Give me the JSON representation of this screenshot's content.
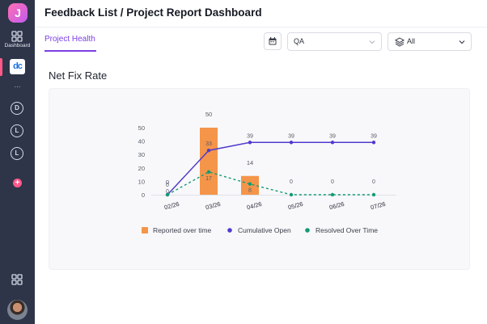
{
  "sidebar": {
    "logo_letter": "J",
    "dashboard_label": "Dashboard",
    "workspace_logo": "dc",
    "more": "...",
    "items": [
      {
        "icon": "d-circle-icon",
        "letter": "D"
      },
      {
        "icon": "clock-icon",
        "letter": "L"
      },
      {
        "icon": "clock-icon",
        "letter": "L"
      }
    ],
    "add": "+"
  },
  "header": {
    "title": "Feedback List / Project Report Dashboard"
  },
  "tabs": [
    {
      "label": "Project Health",
      "active": true
    }
  ],
  "filters": {
    "environment": "QA",
    "layers": "All"
  },
  "section": {
    "title": "Net Fix Rate"
  },
  "chart_data": {
    "type": "bar",
    "categories": [
      "02/26",
      "03/26",
      "04/26",
      "05/26",
      "06/26",
      "07/26"
    ],
    "ylim": [
      0,
      50
    ],
    "y_ticks": [
      0,
      10,
      20,
      30,
      40,
      50
    ],
    "grid": false,
    "legend_position": "bottom",
    "series": [
      {
        "name": "Reported over time",
        "type": "bar",
        "color": "#f4954a",
        "values": [
          0,
          50,
          14,
          0,
          0,
          0
        ],
        "labels": [
          "0",
          "50",
          "14",
          "",
          "",
          ""
        ]
      },
      {
        "name": "Cumulative Open",
        "type": "line",
        "color": "#4f3bcf",
        "values": [
          0,
          33,
          39,
          39,
          39,
          39
        ],
        "labels": [
          "0",
          "33",
          "39",
          "39",
          "39",
          "39"
        ]
      },
      {
        "name": "Resolved Over Time",
        "type": "line",
        "dashed": true,
        "color": "#139b74",
        "values": [
          0,
          17,
          8,
          0,
          0,
          0
        ],
        "labels": [
          "0",
          "17",
          "8",
          "0",
          "0",
          "0"
        ]
      }
    ]
  }
}
